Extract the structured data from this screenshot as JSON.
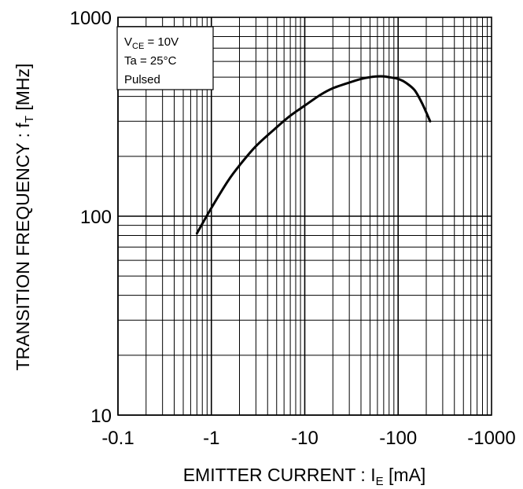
{
  "chart_data": {
    "type": "line",
    "title": "",
    "xscale": "log",
    "yscale": "log",
    "x_axis_reversed_sign": true,
    "xlim": [
      -0.1,
      -1000
    ],
    "ylim": [
      10,
      1000
    ],
    "grid": true,
    "xlabel": {
      "main": "EMITTER CURRENT : I",
      "sub": "E",
      "unit": " [mA]"
    },
    "ylabel": {
      "main": "TRANSITION FREQUENCY : f",
      "sub": "T",
      "unit": " [MHz]"
    },
    "x_ticks": [
      {
        "value": -0.1,
        "label": "-0.1"
      },
      {
        "value": -1,
        "label": "-1"
      },
      {
        "value": -10,
        "label": "-10"
      },
      {
        "value": -100,
        "label": "-100"
      },
      {
        "value": -1000,
        "label": "-1000"
      }
    ],
    "y_ticks": [
      {
        "value": 10,
        "label": "10"
      },
      {
        "value": 100,
        "label": "100"
      },
      {
        "value": 1000,
        "label": "1000"
      }
    ],
    "legend_box": {
      "placement": "top-left",
      "line1": {
        "main": "V",
        "sub": "CE",
        "rest": " = 10V"
      },
      "line2": "Ta = 25°C",
      "line3": "Pulsed"
    },
    "series": [
      {
        "x": [
          -0.7,
          -1.0,
          -1.5,
          -2,
          -3,
          -5,
          -7,
          -10,
          -15,
          -20,
          -30,
          -40,
          -50,
          -60,
          -70,
          -80,
          -100,
          -120,
          -150,
          -180,
          -220
        ],
        "y": [
          82,
          110,
          150,
          180,
          225,
          280,
          320,
          360,
          410,
          440,
          470,
          490,
          500,
          505,
          505,
          500,
          490,
          470,
          430,
          370,
          300
        ]
      }
    ]
  }
}
